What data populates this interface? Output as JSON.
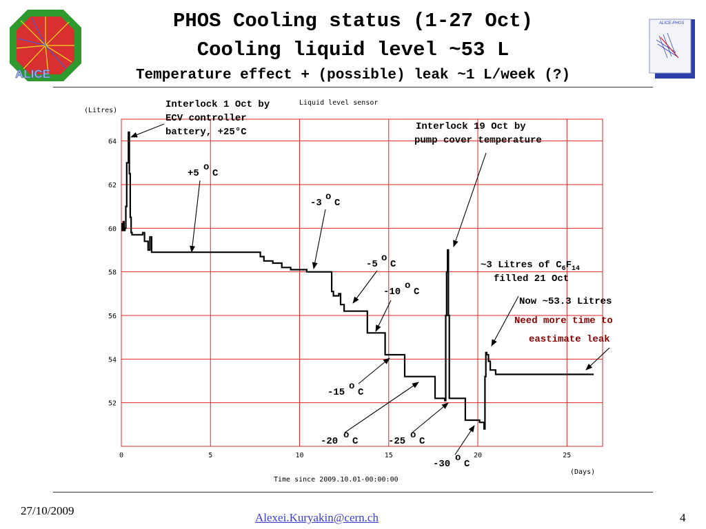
{
  "slide": {
    "title1": "PHOS Cooling status (1-27 Oct)",
    "title2": "Cooling liquid level ~53 L",
    "title3": "Temperature effect + (possible) leak ~1 L/week (?)",
    "footer_date": "27/10/2009",
    "footer_email": "Alexei.Kuryakin@cern.ch",
    "page_number": "4",
    "logo_right_text": "ALICE-PHOS"
  },
  "annotations": {
    "interlock1": [
      "Interlock 1 Oct by",
      "ECV controller",
      "battery, +25°C"
    ],
    "sensor_label": "Liquid level sensor",
    "interlock19": [
      "Interlock 19 Oct by",
      "pump cover temperature"
    ],
    "t_plus5": "+5",
    "t_minus3": "-3",
    "t_minus5": "-5",
    "t_minus10": "-10",
    "t_minus15": "-15",
    "t_minus20": "-20",
    "t_minus25": "-25",
    "t_minus30": "-30",
    "deg_unit": "C",
    "refill_pre": "~3 Litres of C",
    "refill_sub1": "6",
    "refill_mid": "F",
    "refill_sub2": "14",
    "refill_line2": "filled 21 Oct",
    "now_level": "Now ~53.3 Litres",
    "need_more": [
      "Need more time to",
      "eastimate leak"
    ]
  },
  "colors": {
    "grid": "#e02020",
    "line": "#000000",
    "footer_link": "#3b3bd6",
    "need_more_text": "#8b0000"
  },
  "chart_data": {
    "type": "line",
    "ylabel": "(Litres)",
    "xlabel": "Time since 2009.10.01-00:00:00",
    "xunit": "(Days)",
    "xlim": [
      0,
      27
    ],
    "ylim": [
      50,
      65
    ],
    "xticks": [
      0,
      5,
      10,
      15,
      20,
      25
    ],
    "yticks": [
      52,
      54,
      56,
      58,
      60,
      62,
      64
    ],
    "grid": true,
    "series": [
      {
        "x": [
          0,
          0.05,
          0.1,
          0.15,
          0.2,
          0.25,
          0.3,
          0.4,
          0.45,
          0.5,
          0.55,
          0.6,
          1.2,
          1.3,
          1.5,
          1.6,
          1.7,
          2,
          4,
          7,
          7.7,
          7.8,
          8,
          8.5,
          9,
          9.5,
          10,
          10.4,
          10.5,
          11.3,
          11.8,
          11.9,
          12.2,
          12.3,
          12.5,
          12.7,
          13.7,
          13.8,
          14.7,
          14.8,
          15.8,
          15.9,
          17.5,
          17.6,
          18.1,
          18.15,
          18.2,
          18.25,
          18.3,
          18.35,
          18.4,
          18.5,
          18.55,
          18.6,
          19.2,
          19.3,
          20.0,
          20.1,
          20.3,
          20.35,
          20.4,
          20.45,
          20.5,
          20.6,
          20.7,
          21,
          22,
          24,
          26.5
        ],
        "y": [
          60.2,
          59.9,
          60.3,
          59.9,
          60.0,
          61.0,
          63.0,
          64.4,
          62.5,
          60.5,
          59.8,
          59.7,
          59.8,
          59.4,
          59.0,
          59.6,
          58.9,
          58.9,
          58.9,
          58.9,
          58.9,
          58.7,
          58.5,
          58.4,
          58.2,
          58.1,
          58.1,
          58.0,
          58.0,
          58.0,
          57.1,
          56.9,
          57.0,
          56.5,
          56.2,
          56.2,
          56.2,
          55.2,
          55.2,
          54.2,
          54.2,
          53.2,
          53.2,
          52.2,
          52.2,
          52.1,
          56.0,
          58.0,
          59.0,
          56.0,
          52.2,
          52.2,
          52.2,
          52.2,
          52.2,
          51.2,
          51.2,
          51.1,
          51.1,
          50.8,
          53.2,
          54.3,
          54.2,
          53.9,
          53.5,
          53.3,
          53.3,
          53.3,
          53.3
        ]
      }
    ]
  }
}
